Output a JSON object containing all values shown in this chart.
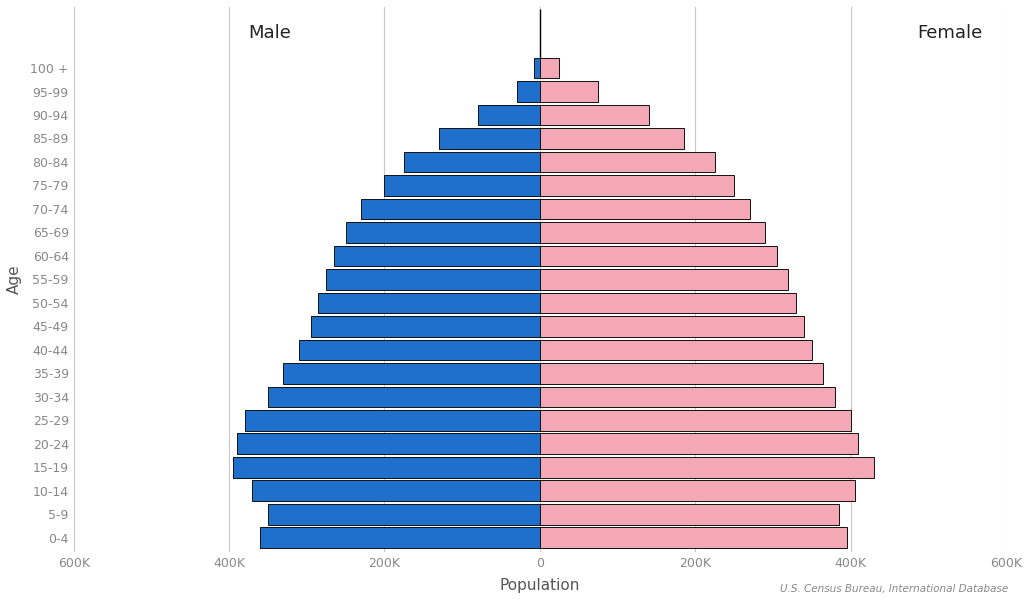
{
  "age_groups": [
    "0-4",
    "5-9",
    "10-14",
    "15-19",
    "20-24",
    "25-29",
    "30-34",
    "35-39",
    "40-44",
    "45-49",
    "50-54",
    "55-59",
    "60-64",
    "65-69",
    "70-74",
    "75-79",
    "80-84",
    "85-89",
    "90-94",
    "95-99",
    "100 +"
  ],
  "male": [
    360000,
    350000,
    370000,
    395000,
    390000,
    380000,
    350000,
    330000,
    310000,
    295000,
    285000,
    275000,
    265000,
    250000,
    230000,
    200000,
    175000,
    130000,
    80000,
    30000,
    8000
  ],
  "female": [
    395000,
    385000,
    405000,
    430000,
    410000,
    400000,
    380000,
    365000,
    350000,
    340000,
    330000,
    320000,
    305000,
    290000,
    270000,
    250000,
    225000,
    185000,
    140000,
    75000,
    25000
  ],
  "male_color": "#1f6fcc",
  "female_color": "#f4a7b4",
  "edge_color": "#111111",
  "xlabel": "Population",
  "ylabel": "Age",
  "male_label": "Male",
  "female_label": "Female",
  "source_text": "U.S. Census Bureau, International Database",
  "xlim": 600000,
  "grid_color": "#c8c8c8",
  "background_color": "#ffffff",
  "tick_color": "#888888"
}
